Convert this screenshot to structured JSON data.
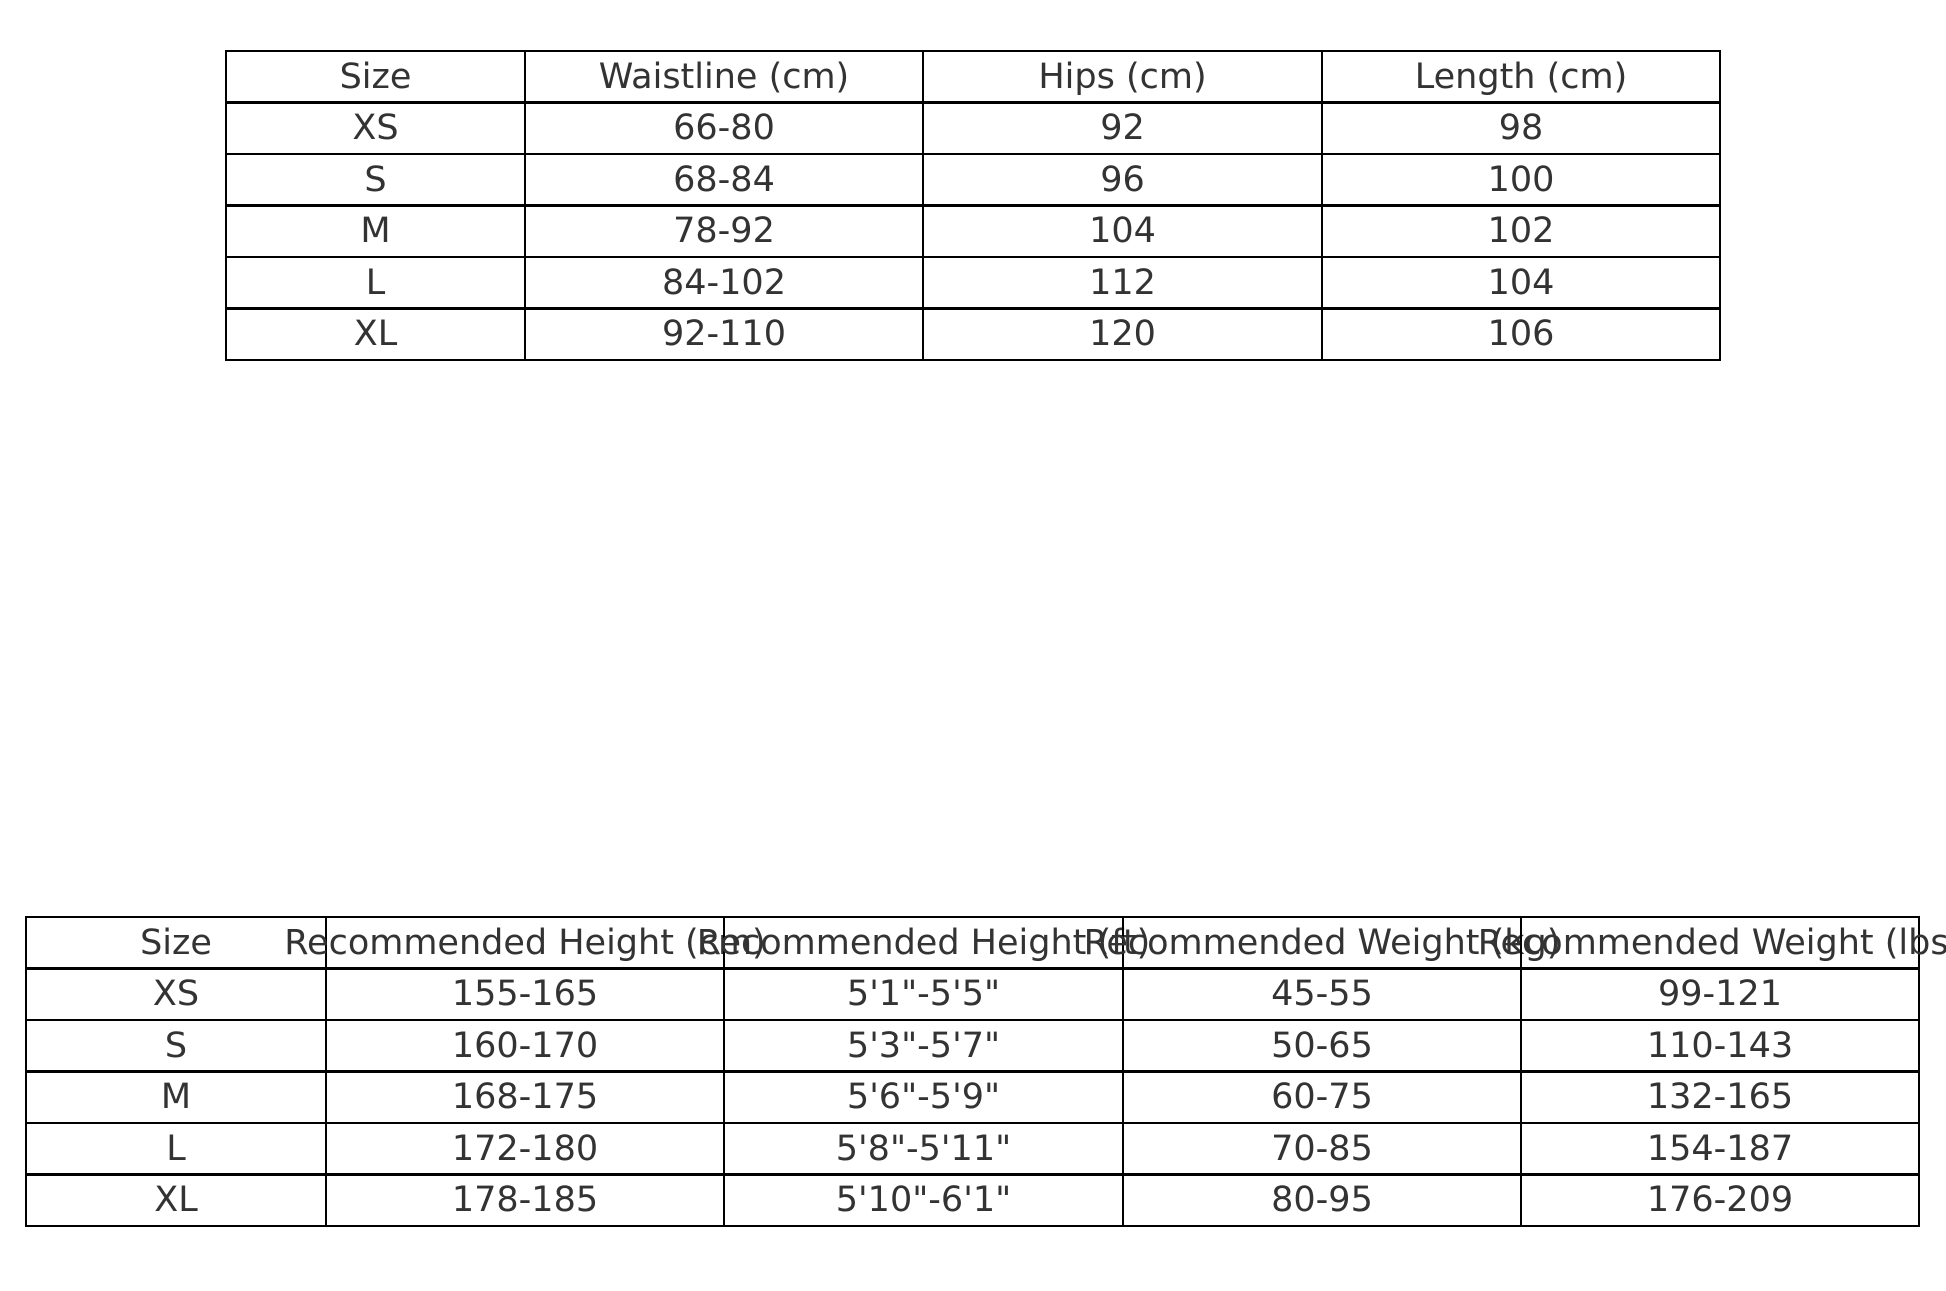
{
  "measurements_table": {
    "headers": [
      "Size",
      "Waistline (cm)",
      "Hips (cm)",
      "Length (cm)"
    ],
    "rows": [
      [
        "XS",
        "66-80",
        "92",
        "98"
      ],
      [
        "S",
        "68-84",
        "96",
        "100"
      ],
      [
        "M",
        "78-92",
        "104",
        "102"
      ],
      [
        "L",
        "84-102",
        "112",
        "104"
      ],
      [
        "XL",
        "92-110",
        "120",
        "106"
      ]
    ]
  },
  "recommendation_table": {
    "headers": [
      "Size",
      "Recommended Height (cm)",
      "Recommended Height (ft)",
      "Recommended Weight (kg)",
      "Recommended Weight (lbs)"
    ],
    "rows": [
      [
        "XS",
        "155-165",
        "5'1\"-5'5\"",
        "45-55",
        "99-121"
      ],
      [
        "S",
        "160-170",
        "5'3\"-5'7\"",
        "50-65",
        "110-143"
      ],
      [
        "M",
        "168-175",
        "5'6\"-5'9\"",
        "60-75",
        "132-165"
      ],
      [
        "L",
        "172-180",
        "5'8\"-5'11\"",
        "70-85",
        "154-187"
      ],
      [
        "XL",
        "178-185",
        "5'10\"-6'1\"",
        "80-95",
        "176-209"
      ]
    ]
  }
}
